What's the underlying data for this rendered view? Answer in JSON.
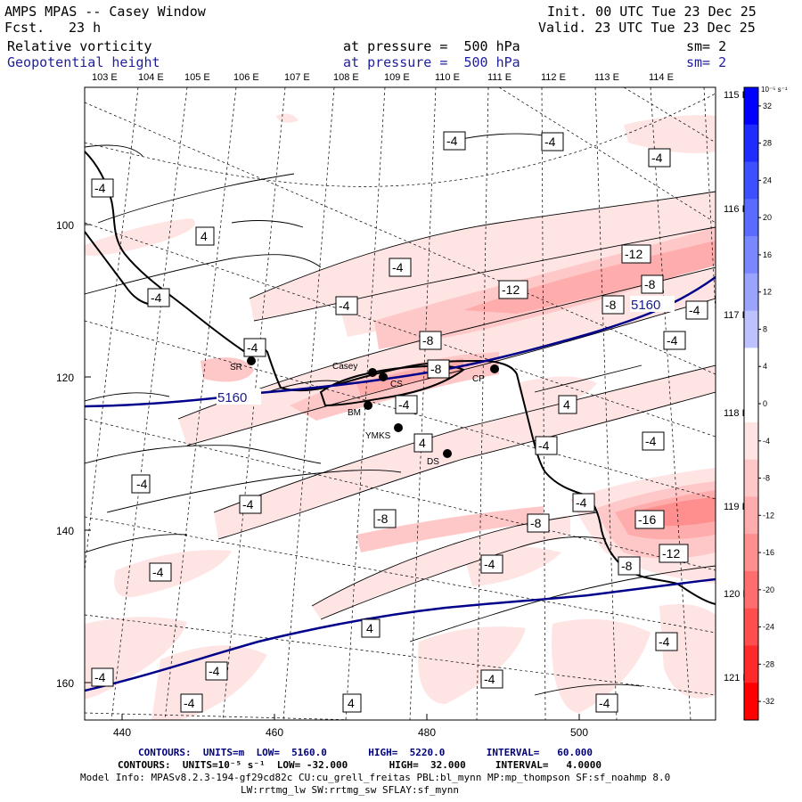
{
  "header": {
    "title": "AMPS MPAS -- Casey Window",
    "fcst_label": "Fcst.",
    "fcst_value": "23 h",
    "init": "Init. 00 UTC Tue 23 Dec 25",
    "valid": "Valid. 23 UTC Tue 23 Dec 25",
    "field1": {
      "name": "Relative vorticity",
      "level": "at pressure =  500 hPa",
      "smooth": "sm= 2"
    },
    "field2": {
      "name": "Geopotential height",
      "level": "at pressure =  500 hPa",
      "smooth": "sm= 2"
    }
  },
  "axes": {
    "top_lon_labels": [
      "103 E",
      "104 E",
      "105 E",
      "106 E",
      "107 E",
      "108 E",
      "109 E",
      "110 E",
      "111 E",
      "112 E",
      "113 E",
      "114 E"
    ],
    "right_lon_labels": [
      "115 E",
      "116 E",
      "117 E",
      "118 E",
      "119 E",
      "120 E",
      "121 E"
    ],
    "x_ticks": [
      "440",
      "460",
      "480",
      "500"
    ],
    "y_ticks": [
      "100",
      "120",
      "140",
      "160"
    ]
  },
  "colorbar": {
    "unit_label": "10⁻⁵ s⁻¹",
    "ticks": [
      "32",
      "28",
      "24",
      "20",
      "16",
      "12",
      "8",
      "4",
      "0",
      "-4",
      "-8",
      "-12",
      "-16",
      "-20",
      "-24",
      "-28",
      "-32"
    ],
    "colors": [
      "#0000ff",
      "#1e2cff",
      "#3c50ff",
      "#5a6cff",
      "#7a88ff",
      "#9aa4ff",
      "#bcc2ff",
      "#ffffff",
      "#ffffff",
      "#ffe4e4",
      "#ffc8c8",
      "#ffacac",
      "#ff8e8e",
      "#ff6e6e",
      "#ff4e4e",
      "#ff2a2a",
      "#ff0000"
    ]
  },
  "stations": [
    {
      "label": "SR"
    },
    {
      "label": "Casey"
    },
    {
      "label": "CS"
    },
    {
      "label": "CP"
    },
    {
      "label": "BM"
    },
    {
      "label": "YMKS"
    },
    {
      "label": "DS"
    }
  ],
  "height_contour_label": "5160",
  "vort_labels": [
    "-4",
    "-4",
    "-4",
    "-4",
    "4",
    "-4",
    "-4",
    "-4",
    "-8",
    "-8",
    "-12",
    "-12",
    "-8",
    "-8",
    "-4",
    "-4",
    "-4",
    "-4",
    "4",
    "-4",
    "-4",
    "4",
    "-4",
    "-8",
    "-8",
    "-4",
    "-16",
    "-12",
    "-8",
    "-4",
    "-4",
    "-4",
    "-4",
    "-4",
    "-4",
    "4",
    "-4",
    "-4",
    "4",
    "-4"
  ],
  "footer": {
    "line1": "CONTOURS:  UNITS=m  LOW=  5160.0       HIGH=  5220.0       INTERVAL=   60.000",
    "line2": "CONTOURS:  UNITS=10⁻⁵ s⁻¹  LOW= -32.000       HIGH=  32.000     INTERVAL=   4.0000",
    "line3": "Model Info: MPASv8.2.3-194-gf29cd82c CU:cu_grell_freitas PBL:bl_mynn MP:mp_thompson SF:sf_noahmp 8.0",
    "line4": "LW:rrtmg_lw SW:rrtmg_sw SFLAY:sf_mynn"
  }
}
